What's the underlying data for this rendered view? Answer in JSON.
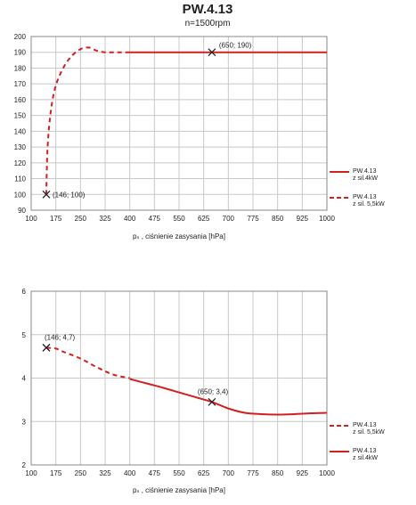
{
  "title": "PW.4.13",
  "subtitle": "n=1500rpm",
  "colors": {
    "series": "#d41f1f",
    "grid": "#c8c8c8",
    "axis": "#888888",
    "marker": "#222222"
  },
  "chart_data": [
    {
      "type": "line",
      "xlabel": "pₛ , ciśnienie zasysania [hPa]",
      "ylabel": "",
      "xlim": [
        100,
        1000
      ],
      "ylim": [
        90,
        200
      ],
      "x_ticks": [
        100,
        175,
        250,
        325,
        400,
        475,
        550,
        625,
        700,
        775,
        850,
        925,
        1000
      ],
      "x_tick_labels": [
        "100",
        "175",
        "250",
        "325",
        "400",
        "475",
        "550",
        "625",
        "700",
        "775",
        "850",
        "925",
        "1000"
      ],
      "y_ticks": [
        90,
        100,
        110,
        120,
        130,
        140,
        150,
        160,
        170,
        180,
        190,
        200
      ],
      "y_tick_labels": [
        "90",
        "100",
        "110",
        "120",
        "130",
        "140",
        "150",
        "160",
        "170",
        "180",
        "190",
        "200"
      ],
      "grid": true,
      "legend_position": "right",
      "series": [
        {
          "name": "PW.4.13\nz sil.4kW",
          "style": "solid",
          "x": [
            400,
            1000
          ],
          "y": [
            190,
            190
          ]
        },
        {
          "name": "PW.4.13\nz sil. 5,5kW",
          "style": "dashed",
          "x": [
            146,
            150,
            160,
            175,
            200,
            225,
            250,
            275,
            300,
            325,
            350,
            375,
            400
          ],
          "y": [
            100,
            130,
            153,
            169,
            181,
            188,
            192,
            193,
            191,
            190,
            190,
            190,
            190
          ]
        }
      ],
      "legend": [
        {
          "label": "PW.4.13\nz sil.4kW",
          "style": "solid"
        },
        {
          "label": "PW.4.13\nz sil. 5,5kW",
          "style": "dashed"
        }
      ],
      "markers": [
        {
          "x": 146,
          "y": 100,
          "label": "(146; 100)",
          "label_side": "right"
        },
        {
          "x": 650,
          "y": 190,
          "label": "(650; 190)",
          "label_side": "above-right"
        }
      ]
    },
    {
      "type": "line",
      "xlabel": "pₛ , ciśnienie zasysania [hPa]",
      "ylabel": "",
      "xlim": [
        100,
        1000
      ],
      "ylim": [
        2,
        6
      ],
      "x_ticks": [
        100,
        175,
        250,
        325,
        400,
        475,
        550,
        625,
        700,
        775,
        850,
        925,
        1000
      ],
      "x_tick_labels": [
        "100",
        "175",
        "250",
        "325",
        "400",
        "475",
        "550",
        "625",
        "700",
        "775",
        "850",
        "925",
        "1000"
      ],
      "y_ticks": [
        2,
        3,
        4,
        5,
        6
      ],
      "y_tick_labels": [
        "2",
        "3",
        "4",
        "5",
        "6"
      ],
      "grid": true,
      "legend_position": "right",
      "series": [
        {
          "name": "PW.4.13\nz sil. 5,5kW",
          "style": "dashed",
          "x": [
            146,
            175,
            200,
            250,
            300,
            350,
            400
          ],
          "y": [
            4.7,
            4.68,
            4.6,
            4.45,
            4.25,
            4.08,
            4.0
          ]
        },
        {
          "name": "PW.4.13\nz sil.4kW",
          "style": "solid",
          "x": [
            400,
            450,
            500,
            550,
            600,
            650,
            700,
            750,
            800,
            850,
            900,
            950,
            1000
          ],
          "y": [
            3.98,
            3.88,
            3.78,
            3.67,
            3.56,
            3.45,
            3.3,
            3.2,
            3.17,
            3.16,
            3.17,
            3.19,
            3.2
          ]
        }
      ],
      "legend": [
        {
          "label": "PW.4.13\nz sil. 5,5kW",
          "style": "dashed"
        },
        {
          "label": "PW.4.13\nz sil.4kW",
          "style": "solid"
        }
      ],
      "markers": [
        {
          "x": 146,
          "y": 4.7,
          "label": "(146; 4,7)",
          "label_side": "above"
        },
        {
          "x": 650,
          "y": 3.45,
          "label": "(650; 3,4)",
          "label_side": "above-left"
        }
      ]
    }
  ]
}
